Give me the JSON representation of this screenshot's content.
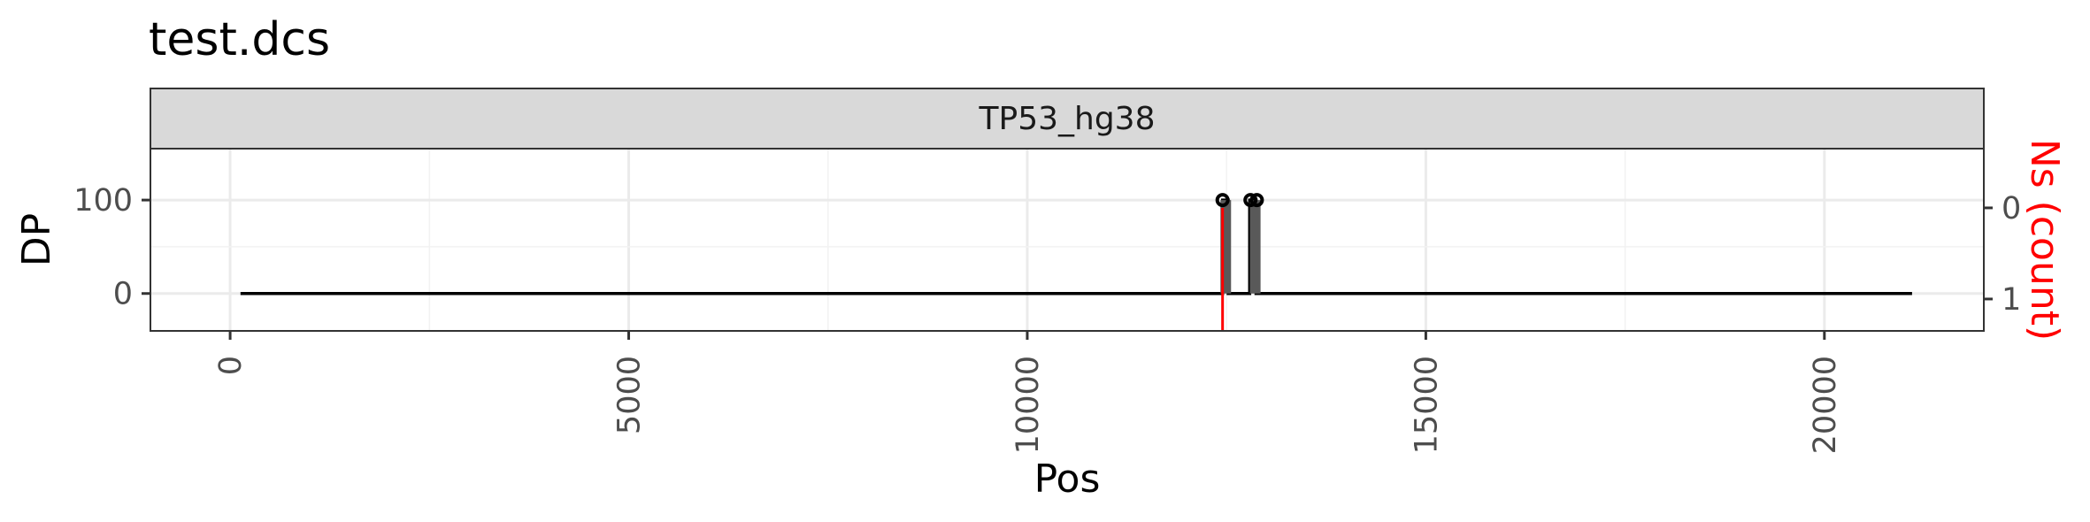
{
  "chart_data": {
    "type": "line",
    "title": "test.dcs",
    "facet_label": "TP53_hg38",
    "xlabel": "Pos",
    "ylabel": "DP",
    "y2label": "Ns (count)",
    "xlim": [
      -1000,
      22000
    ],
    "ylim": [
      -40,
      155
    ],
    "y2lim": [
      -1.35,
      0.65
    ],
    "x_ticks": [
      {
        "value": 0,
        "label": "0"
      },
      {
        "value": 5000,
        "label": "5000"
      },
      {
        "value": 10000,
        "label": "10000"
      },
      {
        "value": 15000,
        "label": "15000"
      },
      {
        "value": 20000,
        "label": "20000"
      }
    ],
    "y_ticks": [
      {
        "value": 0,
        "label": "0"
      },
      {
        "value": 100,
        "label": "100"
      }
    ],
    "y2_ticks": [
      {
        "value": 0,
        "label": "0"
      },
      {
        "value": -1,
        "label": "1"
      }
    ],
    "grid": true,
    "series": [
      {
        "kind": "dp-line",
        "color": "#000000",
        "points": [
          [
            130,
            0
          ],
          [
            12450,
            0
          ],
          [
            12450,
            100
          ],
          [
            12520,
            100
          ],
          [
            12520,
            0
          ],
          [
            12790,
            0
          ],
          [
            12790,
            100
          ],
          [
            12870,
            100
          ],
          [
            12870,
            0
          ],
          [
            21100,
            0
          ]
        ]
      },
      {
        "kind": "dp-bars",
        "color": "#595959",
        "bars": [
          {
            "x": 12490,
            "value": 100
          },
          {
            "x": 12860,
            "value": 100
          }
        ]
      },
      {
        "kind": "dp-points",
        "color": "#000000",
        "points": [
          {
            "x": 12450,
            "value": 100
          },
          {
            "x": 12800,
            "value": 100
          },
          {
            "x": 12880,
            "value": 100
          }
        ]
      },
      {
        "kind": "ns-segments",
        "color": "#ff0000",
        "axis": "secondary",
        "segments": [
          {
            "x": 12450,
            "from": 0,
            "to": -1.35
          }
        ]
      }
    ]
  }
}
